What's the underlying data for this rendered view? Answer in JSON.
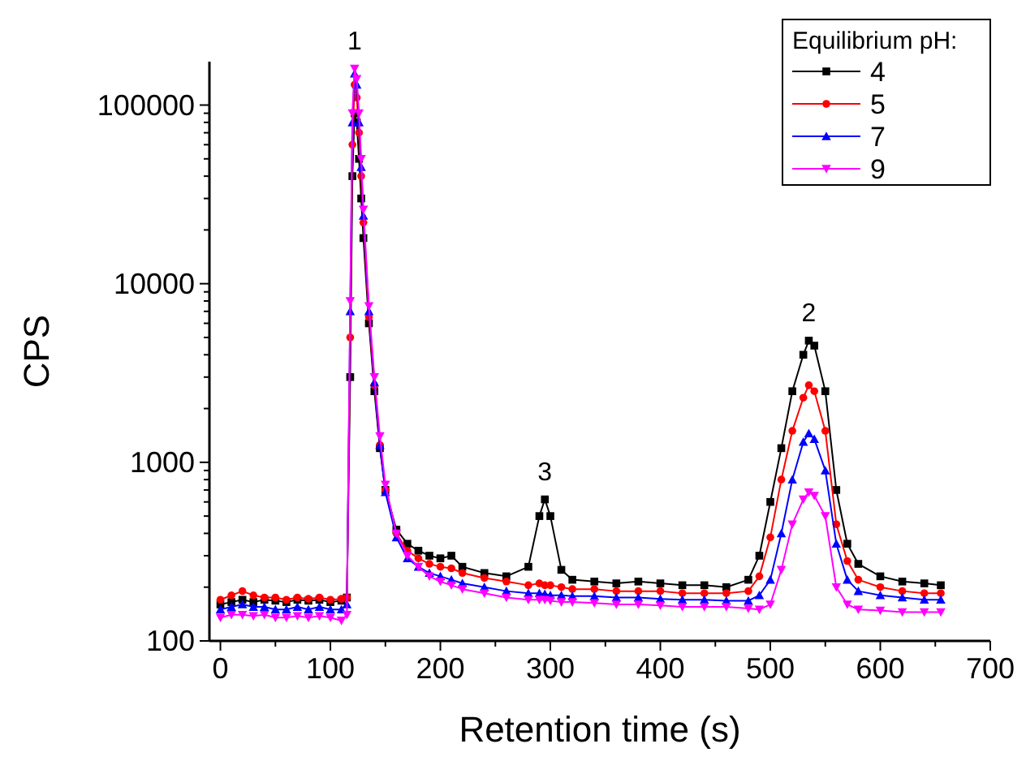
{
  "chart_data": {
    "type": "line",
    "xlabel": "Retention time (s)",
    "ylabel": "CPS",
    "legend_title": "Equilibrium pH:",
    "legend": "top right",
    "log": true,
    "grid": false,
    "xlim": [
      -10,
      700
    ],
    "ylim": [
      100,
      175000
    ],
    "xticks": [
      0,
      {
        "value": 50,
        "label": null
      },
      100,
      {
        "value": 150,
        "label": null
      },
      200,
      {
        "value": 250,
        "label": null
      },
      300,
      {
        "value": 350,
        "label": null
      },
      400,
      {
        "value": 450,
        "label": null
      },
      500,
      {
        "value": 550,
        "label": null
      },
      600,
      {
        "value": 650,
        "label": null
      },
      700
    ],
    "yticks": [
      100,
      {
        "value": 200,
        "label": null
      },
      {
        "value": 300,
        "label": null
      },
      {
        "value": 400,
        "label": null
      },
      {
        "value": 500,
        "label": null
      },
      {
        "value": 600,
        "label": null
      },
      {
        "value": 700,
        "label": null
      },
      {
        "value": 800,
        "label": null
      },
      {
        "value": 900,
        "label": null
      },
      1000,
      {
        "value": 2000,
        "label": null
      },
      {
        "value": 3000,
        "label": null
      },
      {
        "value": 4000,
        "label": null
      },
      {
        "value": 5000,
        "label": null
      },
      {
        "value": 6000,
        "label": null
      },
      {
        "value": 7000,
        "label": null
      },
      {
        "value": 8000,
        "label": null
      },
      {
        "value": 9000,
        "label": null
      },
      10000,
      {
        "value": 20000,
        "label": null
      },
      {
        "value": 30000,
        "label": null
      },
      {
        "value": 40000,
        "label": null
      },
      {
        "value": 50000,
        "label": null
      },
      {
        "value": 60000,
        "label": null
      },
      {
        "value": 70000,
        "label": null
      },
      {
        "value": 80000,
        "label": null
      },
      {
        "value": 90000,
        "label": null
      },
      100000
    ],
    "x": [
      0,
      10,
      20,
      30,
      40,
      50,
      60,
      70,
      80,
      90,
      100,
      110,
      115,
      118,
      120,
      122,
      124,
      126,
      128,
      130,
      135,
      140,
      145,
      150,
      160,
      170,
      180,
      190,
      200,
      210,
      220,
      240,
      260,
      280,
      290,
      295,
      300,
      310,
      320,
      340,
      360,
      380,
      400,
      420,
      440,
      460,
      480,
      490,
      500,
      510,
      520,
      530,
      535,
      540,
      550,
      560,
      570,
      580,
      600,
      620,
      640,
      655
    ],
    "line_style": "solid",
    "series": [
      {
        "name": "4",
        "color": "#000000",
        "marker": "square",
        "values": [
          160,
          165,
          170,
          165,
          170,
          168,
          165,
          170,
          168,
          170,
          165,
          168,
          175,
          3000,
          40000,
          90000,
          80000,
          50000,
          30000,
          18000,
          6000,
          2500,
          1200,
          700,
          420,
          350,
          320,
          300,
          290,
          300,
          260,
          240,
          230,
          260,
          500,
          620,
          500,
          250,
          220,
          215,
          210,
          215,
          210,
          205,
          205,
          200,
          220,
          300,
          600,
          1200,
          2500,
          4000,
          4800,
          4500,
          2500,
          700,
          350,
          270,
          230,
          215,
          210,
          205
        ]
      },
      {
        "name": "5",
        "color": "#ff0000",
        "marker": "circle",
        "values": [
          170,
          180,
          190,
          180,
          175,
          175,
          170,
          175,
          172,
          175,
          170,
          172,
          175,
          5000,
          60000,
          130000,
          110000,
          70000,
          40000,
          22000,
          6500,
          2700,
          1250,
          700,
          400,
          320,
          290,
          270,
          260,
          255,
          240,
          225,
          215,
          205,
          210,
          205,
          205,
          200,
          195,
          195,
          190,
          190,
          190,
          185,
          185,
          185,
          190,
          230,
          380,
          800,
          1500,
          2300,
          2700,
          2500,
          1500,
          450,
          280,
          220,
          200,
          190,
          185,
          185
        ]
      },
      {
        "name": "7",
        "color": "#0000ff",
        "marker": "triangle",
        "values": [
          150,
          155,
          160,
          155,
          155,
          150,
          150,
          155,
          150,
          155,
          150,
          150,
          160,
          7000,
          80000,
          150000,
          130000,
          80000,
          45000,
          24000,
          7000,
          2800,
          1250,
          680,
          380,
          290,
          260,
          240,
          230,
          220,
          210,
          200,
          190,
          185,
          185,
          183,
          180,
          180,
          178,
          178,
          175,
          175,
          172,
          170,
          170,
          168,
          168,
          180,
          220,
          400,
          800,
          1300,
          1450,
          1350,
          900,
          350,
          220,
          190,
          180,
          175,
          170,
          170
        ]
      },
      {
        "name": "9",
        "color": "#ff00ff",
        "marker": "triangle-down",
        "values": [
          135,
          140,
          140,
          138,
          140,
          135,
          135,
          138,
          135,
          138,
          135,
          130,
          140,
          8000,
          90000,
          160000,
          140000,
          90000,
          50000,
          26000,
          7500,
          3000,
          1400,
          750,
          400,
          300,
          260,
          230,
          215,
          205,
          195,
          185,
          175,
          170,
          170,
          170,
          168,
          165,
          165,
          163,
          160,
          160,
          158,
          155,
          155,
          155,
          152,
          150,
          160,
          250,
          450,
          620,
          680,
          650,
          500,
          200,
          160,
          150,
          148,
          145,
          145,
          145
        ]
      }
    ],
    "annotations": [
      {
        "text": "1",
        "x": 122,
        "y": 160000
      },
      {
        "text": "3",
        "x": 295,
        "y": 620
      },
      {
        "text": "2",
        "x": 535,
        "y": 4800
      }
    ]
  }
}
